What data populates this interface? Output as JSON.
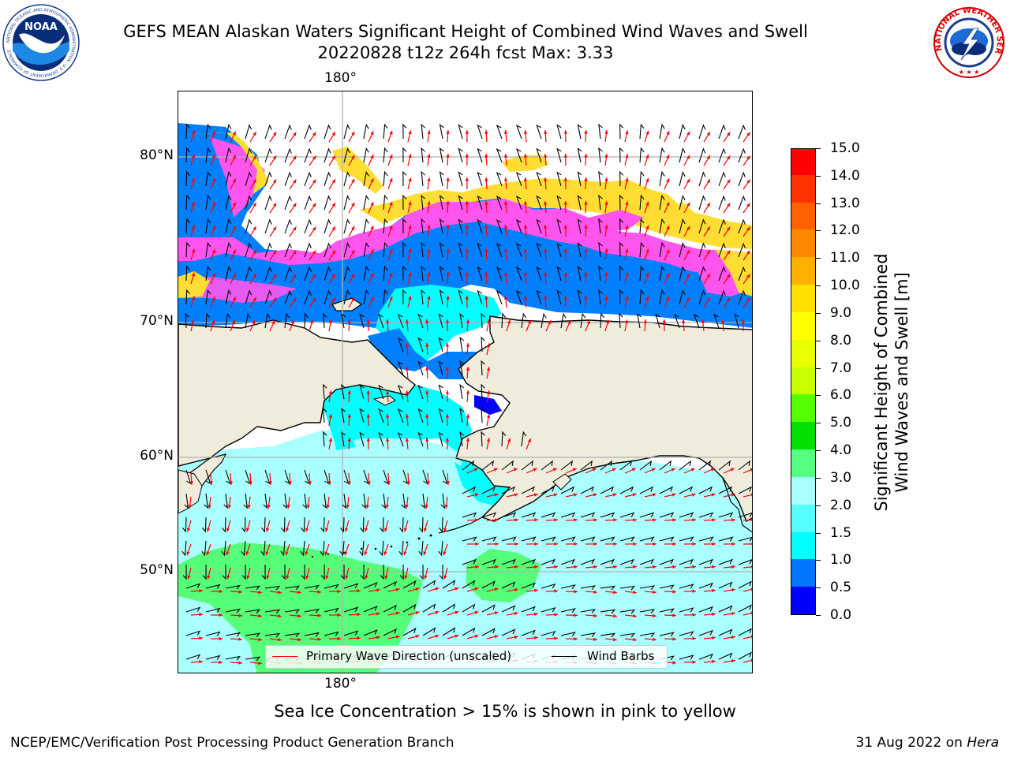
{
  "title": {
    "line1": "GEFS MEAN Alaskan Waters Significant Height of Combined Wind Waves and Swell",
    "line2": "20220828 t12z 264h fcst   Max: 3.33"
  },
  "logos": {
    "left": {
      "icon": "noaa-logo-icon",
      "text": "NOAA",
      "ring_text": "NATIONAL OCEANIC AND ATMOSPHERIC ADMINISTRATION · U.S. DEPARTMENT OF COMMERCE"
    },
    "right": {
      "icon": "nws-logo-icon",
      "ring_text": "NATIONAL WEATHER SERVICE"
    }
  },
  "map": {
    "lon_labels_top": [
      "180°"
    ],
    "lon_labels_bottom": [
      "180°"
    ],
    "lat_labels": [
      "80°N",
      "70°N",
      "60°N",
      "50°N"
    ],
    "colors": {
      "land": "#efecdc",
      "ocean_low": "#aaffff",
      "ocean_mid": "#00ffff",
      "ocean_deep": "#0080ff",
      "green_high": "#55ff77",
      "ice_pink": "#ff55ee",
      "ice_yellow": "#ffdd33",
      "gridline": "#b0b0b0",
      "wave_arrow": "#ff0000",
      "wind_barb": "#000000"
    }
  },
  "legend": {
    "items": [
      {
        "label": "Primary Wave Direction (unscaled)",
        "color": "#ff0000"
      },
      {
        "label": "Wind Barbs",
        "color": "#000000"
      }
    ]
  },
  "colorbar": {
    "title_line1": "Significant Height of Combined",
    "title_line2": "Wind Waves and Swell [m]",
    "tick_labels": [
      "0.0",
      "0.5",
      "1.0",
      "1.5",
      "2.0",
      "3.0",
      "4.0",
      "5.0",
      "6.0",
      "7.0",
      "8.0",
      "9.0",
      "10.0",
      "11.0",
      "12.0",
      "13.0",
      "14.0",
      "15.0"
    ],
    "bands": [
      "#0000ff",
      "#0077ff",
      "#00ffff",
      "#55ffff",
      "#aaffff",
      "#55ff80",
      "#00e000",
      "#55ff00",
      "#c8ff00",
      "#e8ff00",
      "#ffff00",
      "#ffe000",
      "#ffb000",
      "#ff8800",
      "#ff6000",
      "#ff3300",
      "#ff0000"
    ]
  },
  "caption": "Sea Ice Concentration > 15% is shown in pink to yellow",
  "footer": {
    "left": "NCEP/EMC/Verification Post Processing Product Generation Branch",
    "right_date": "31 Aug 2022 on ",
    "right_host": "Hera"
  }
}
